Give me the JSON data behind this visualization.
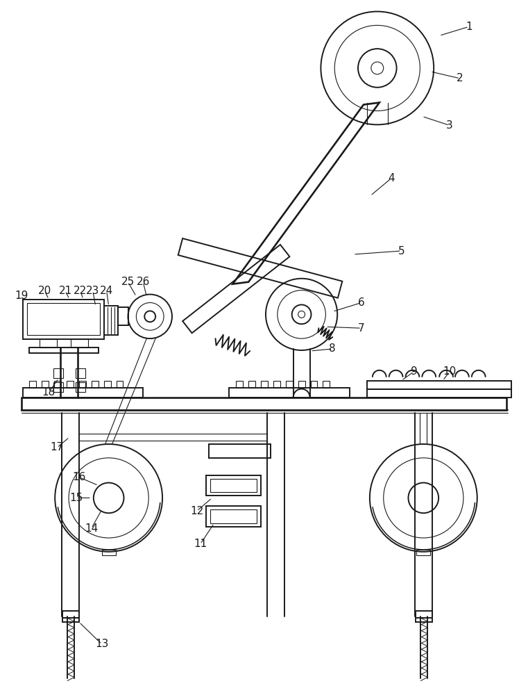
{
  "bg_color": "#ffffff",
  "line_color": "#1a1a1a",
  "lw": 1.4,
  "tlw": 0.8,
  "fig_width": 7.61,
  "fig_height": 10.0
}
